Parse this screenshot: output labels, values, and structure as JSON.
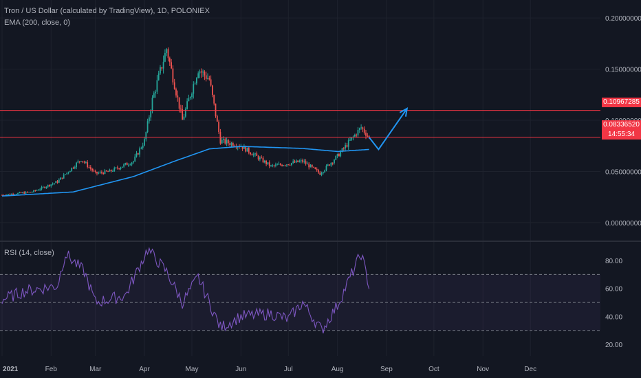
{
  "header": {
    "title": "Tron / US Dollar (calculated by TradingView), 1D, POLONIEX",
    "indicator": "EMA (200, close, 0)",
    "rsi_label": "RSI (14, close)"
  },
  "price_tags": {
    "resistance": "0.10967285",
    "last": "0.08336520",
    "countdown": "14:55:34"
  },
  "colors": {
    "background": "#131722",
    "up": "#26a69a",
    "down": "#ef5350",
    "ema": "#2196f3",
    "rsi": "#7e57c2",
    "hline": "#f23645",
    "arrow": "#2196f3"
  },
  "chart_data": [
    {
      "type": "candlestick",
      "title": "Tron / US Dollar (calculated by TradingView), 1D, POLONIEX",
      "x_ticks": [
        "2021",
        "Feb",
        "Mar",
        "Apr",
        "May",
        "Jun",
        "Jul",
        "Aug",
        "Sep",
        "Oct",
        "Nov",
        "Dec"
      ],
      "y_ticks": [
        "0.20000000",
        "0.15000000",
        "0.10000000",
        "0.05000000",
        "0.00000000"
      ],
      "ylim": [
        -0.0175,
        0.2175
      ],
      "key_closes": [
        {
          "date": "2021-01-01",
          "close": 0.027
        },
        {
          "date": "2021-01-20",
          "close": 0.03
        },
        {
          "date": "2021-02-05",
          "close": 0.04
        },
        {
          "date": "2021-02-20",
          "close": 0.062
        },
        {
          "date": "2021-03-01",
          "close": 0.048
        },
        {
          "date": "2021-03-10",
          "close": 0.05
        },
        {
          "date": "2021-03-25",
          "close": 0.06
        },
        {
          "date": "2021-04-01",
          "close": 0.08
        },
        {
          "date": "2021-04-06",
          "close": 0.12
        },
        {
          "date": "2021-04-15",
          "close": 0.17
        },
        {
          "date": "2021-04-25",
          "close": 0.1
        },
        {
          "date": "2021-05-05",
          "close": 0.15
        },
        {
          "date": "2021-05-12",
          "close": 0.14
        },
        {
          "date": "2021-05-19",
          "close": 0.08
        },
        {
          "date": "2021-06-01",
          "close": 0.075
        },
        {
          "date": "2021-06-20",
          "close": 0.055
        },
        {
          "date": "2021-07-10",
          "close": 0.06
        },
        {
          "date": "2021-07-21",
          "close": 0.048
        },
        {
          "date": "2021-08-01",
          "close": 0.065
        },
        {
          "date": "2021-08-16",
          "close": 0.093
        },
        {
          "date": "2021-08-21",
          "close": 0.0834
        }
      ],
      "ema_200": [
        {
          "date": "2021-01-01",
          "value": 0.026
        },
        {
          "date": "2021-02-15",
          "value": 0.03
        },
        {
          "date": "2021-03-25",
          "value": 0.045
        },
        {
          "date": "2021-04-20",
          "value": 0.06
        },
        {
          "date": "2021-05-12",
          "value": 0.072
        },
        {
          "date": "2021-06-01",
          "value": 0.0745
        },
        {
          "date": "2021-07-10",
          "value": 0.0725
        },
        {
          "date": "2021-08-01",
          "value": 0.0695
        },
        {
          "date": "2021-08-21",
          "value": 0.0715
        }
      ],
      "horizontal_lines": [
        0.10967285,
        0.0833652
      ],
      "projection": [
        {
          "date": "2021-08-21",
          "value": 0.0834
        },
        {
          "date": "2021-08-27",
          "value": 0.0715
        },
        {
          "date": "2021-09-14",
          "value": 0.1115
        }
      ]
    },
    {
      "type": "line",
      "title": "RSI (14, close)",
      "y_ticks": [
        "80.00",
        "60.00",
        "40.00",
        "20.00"
      ],
      "ylim": [
        11.7,
        93.3
      ],
      "band": [
        30,
        70
      ],
      "midline": 50,
      "key_values": [
        {
          "date": "2021-01-01",
          "value": 52
        },
        {
          "date": "2021-01-15",
          "value": 58
        },
        {
          "date": "2021-02-05",
          "value": 62
        },
        {
          "date": "2021-02-10",
          "value": 85
        },
        {
          "date": "2021-02-22",
          "value": 72
        },
        {
          "date": "2021-03-01",
          "value": 50
        },
        {
          "date": "2021-03-20",
          "value": 55
        },
        {
          "date": "2021-04-03",
          "value": 88
        },
        {
          "date": "2021-04-15",
          "value": 72
        },
        {
          "date": "2021-04-25",
          "value": 50
        },
        {
          "date": "2021-05-05",
          "value": 68
        },
        {
          "date": "2021-05-19",
          "value": 32
        },
        {
          "date": "2021-06-01",
          "value": 40
        },
        {
          "date": "2021-06-20",
          "value": 42
        },
        {
          "date": "2021-07-01",
          "value": 38
        },
        {
          "date": "2021-07-10",
          "value": 50
        },
        {
          "date": "2021-07-22",
          "value": 30
        },
        {
          "date": "2021-08-01",
          "value": 48
        },
        {
          "date": "2021-08-16",
          "value": 85
        },
        {
          "date": "2021-08-21",
          "value": 62
        }
      ]
    }
  ]
}
